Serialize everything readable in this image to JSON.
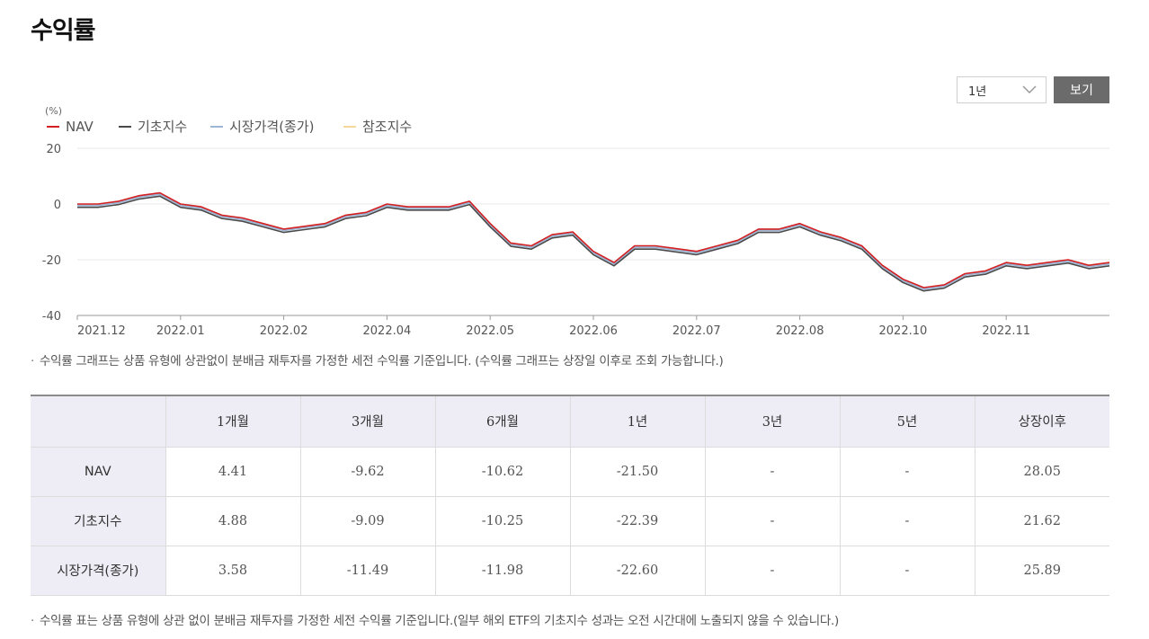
{
  "page": {
    "title": "수익률",
    "note_chart": "수익률 그래프는 상품 유형에 상관없이 분배금 재투자를 가정한 세전 수익률 기준입니다. (수익률 그래프는 상장일 이후로 조회 가능합니다.)",
    "note_table": "수익률 표는 상품 유형에 상관 없이 분배금 재투자를 가정한 세전 수익률 기준입니다.(일부 해외 ETF의 기초지수 성과는 오전 시간대에 노출되지 않을 수 있습니다.)",
    "bullet": "·"
  },
  "controls": {
    "period_value": "1년",
    "view_label": "보기"
  },
  "chart_data": {
    "type": "line",
    "y_unit": "(%)",
    "ylim": [
      -40,
      20
    ],
    "yticks": [
      "20",
      "0",
      "-20",
      "-40"
    ],
    "ytick_values": [
      20,
      0,
      -20,
      -40
    ],
    "xlim": [
      0,
      100
    ],
    "xticks": [
      {
        "label": "2021.12",
        "x": 0
      },
      {
        "label": "2022.01",
        "x": 10
      },
      {
        "label": "2022.02",
        "x": 20
      },
      {
        "label": "2022.04",
        "x": 30
      },
      {
        "label": "2022.05",
        "x": 40
      },
      {
        "label": "2022.06",
        "x": 50
      },
      {
        "label": "2022.07",
        "x": 60
      },
      {
        "label": "2022.08",
        "x": 70
      },
      {
        "label": "2022.10",
        "x": 80
      },
      {
        "label": "2022.11",
        "x": 90
      }
    ],
    "grid": true,
    "legend_placement": "top-left",
    "series": [
      {
        "name": "NAV",
        "color": "#d42020"
      },
      {
        "name": "기초지수",
        "color": "#4a4a4a"
      },
      {
        "name": "시장가격(종가)",
        "color": "#9db6d6"
      },
      {
        "name": "참조지수",
        "color": "#f5d89a"
      }
    ],
    "x": [
      0,
      2,
      4,
      6,
      8,
      10,
      12,
      14,
      16,
      18,
      20,
      22,
      24,
      26,
      28,
      30,
      32,
      34,
      36,
      38,
      40,
      42,
      44,
      46,
      48,
      50,
      52,
      54,
      56,
      58,
      60,
      62,
      64,
      66,
      68,
      70,
      72,
      74,
      76,
      78,
      80,
      82,
      84,
      86,
      88,
      90,
      92,
      94,
      96,
      98,
      100
    ],
    "values": [
      0,
      0,
      1,
      3,
      4,
      0,
      -1,
      -4,
      -5,
      -7,
      -9,
      -8,
      -7,
      -4,
      -3,
      0,
      -1,
      -1,
      -1,
      1,
      -7,
      -14,
      -15,
      -11,
      -10,
      -17,
      -21,
      -15,
      -15,
      -16,
      -17,
      -15,
      -13,
      -9,
      -9,
      -7,
      -10,
      -12,
      -15,
      -22,
      -27,
      -30,
      -29,
      -25,
      -24,
      -21,
      -22,
      -21,
      -20,
      -22,
      -21
    ],
    "offsets": {
      "NAV": 0,
      "기초지수": -1.2,
      "시장가격(종가)": -0.5
    }
  },
  "table": {
    "headers": [
      "",
      "1개월",
      "3개월",
      "6개월",
      "1년",
      "3년",
      "5년",
      "상장이후"
    ],
    "rows": [
      {
        "label": "NAV",
        "values": [
          "4.41",
          "-9.62",
          "-10.62",
          "-21.50",
          "-",
          "-",
          "28.05"
        ]
      },
      {
        "label": "기초지수",
        "values": [
          "4.88",
          "-9.09",
          "-10.25",
          "-22.39",
          "-",
          "-",
          "21.62"
        ]
      },
      {
        "label": "시장가격(종가)",
        "values": [
          "3.58",
          "-11.49",
          "-11.98",
          "-22.60",
          "-",
          "-",
          "25.89"
        ]
      }
    ]
  }
}
